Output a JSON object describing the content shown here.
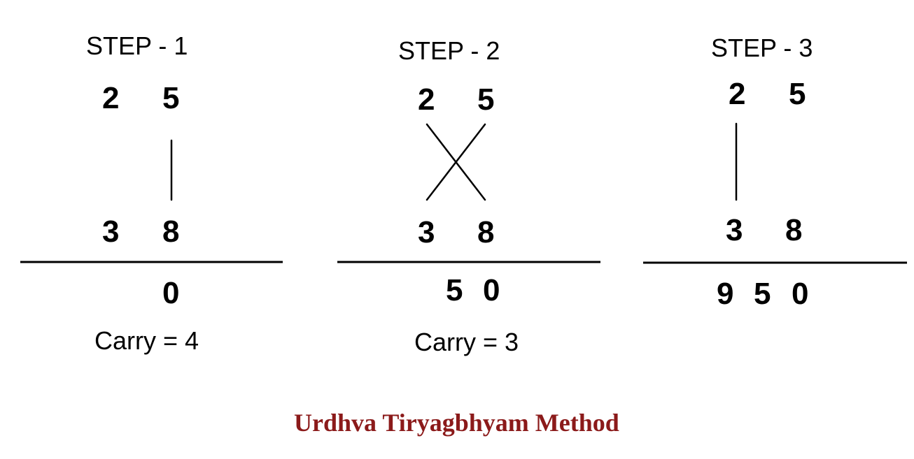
{
  "steps": [
    {
      "title": "STEP - 1",
      "top_digits": [
        "2",
        "5"
      ],
      "bottom_digits": [
        "3",
        "8"
      ],
      "result": [
        "0"
      ],
      "carry": "Carry = 4"
    },
    {
      "title": "STEP - 2",
      "top_digits": [
        "2",
        "5"
      ],
      "bottom_digits": [
        "3",
        "8"
      ],
      "result": [
        "5",
        "0"
      ],
      "carry": "Carry = 3"
    },
    {
      "title": "STEP - 3",
      "top_digits": [
        "2",
        "5"
      ],
      "bottom_digits": [
        "3",
        "8"
      ],
      "result": [
        "9",
        "5",
        "0"
      ]
    }
  ],
  "caption": "Urdhva Tiryagbhyam Method",
  "colors": {
    "caption": "#8b1a1a",
    "ink": "#000000"
  }
}
